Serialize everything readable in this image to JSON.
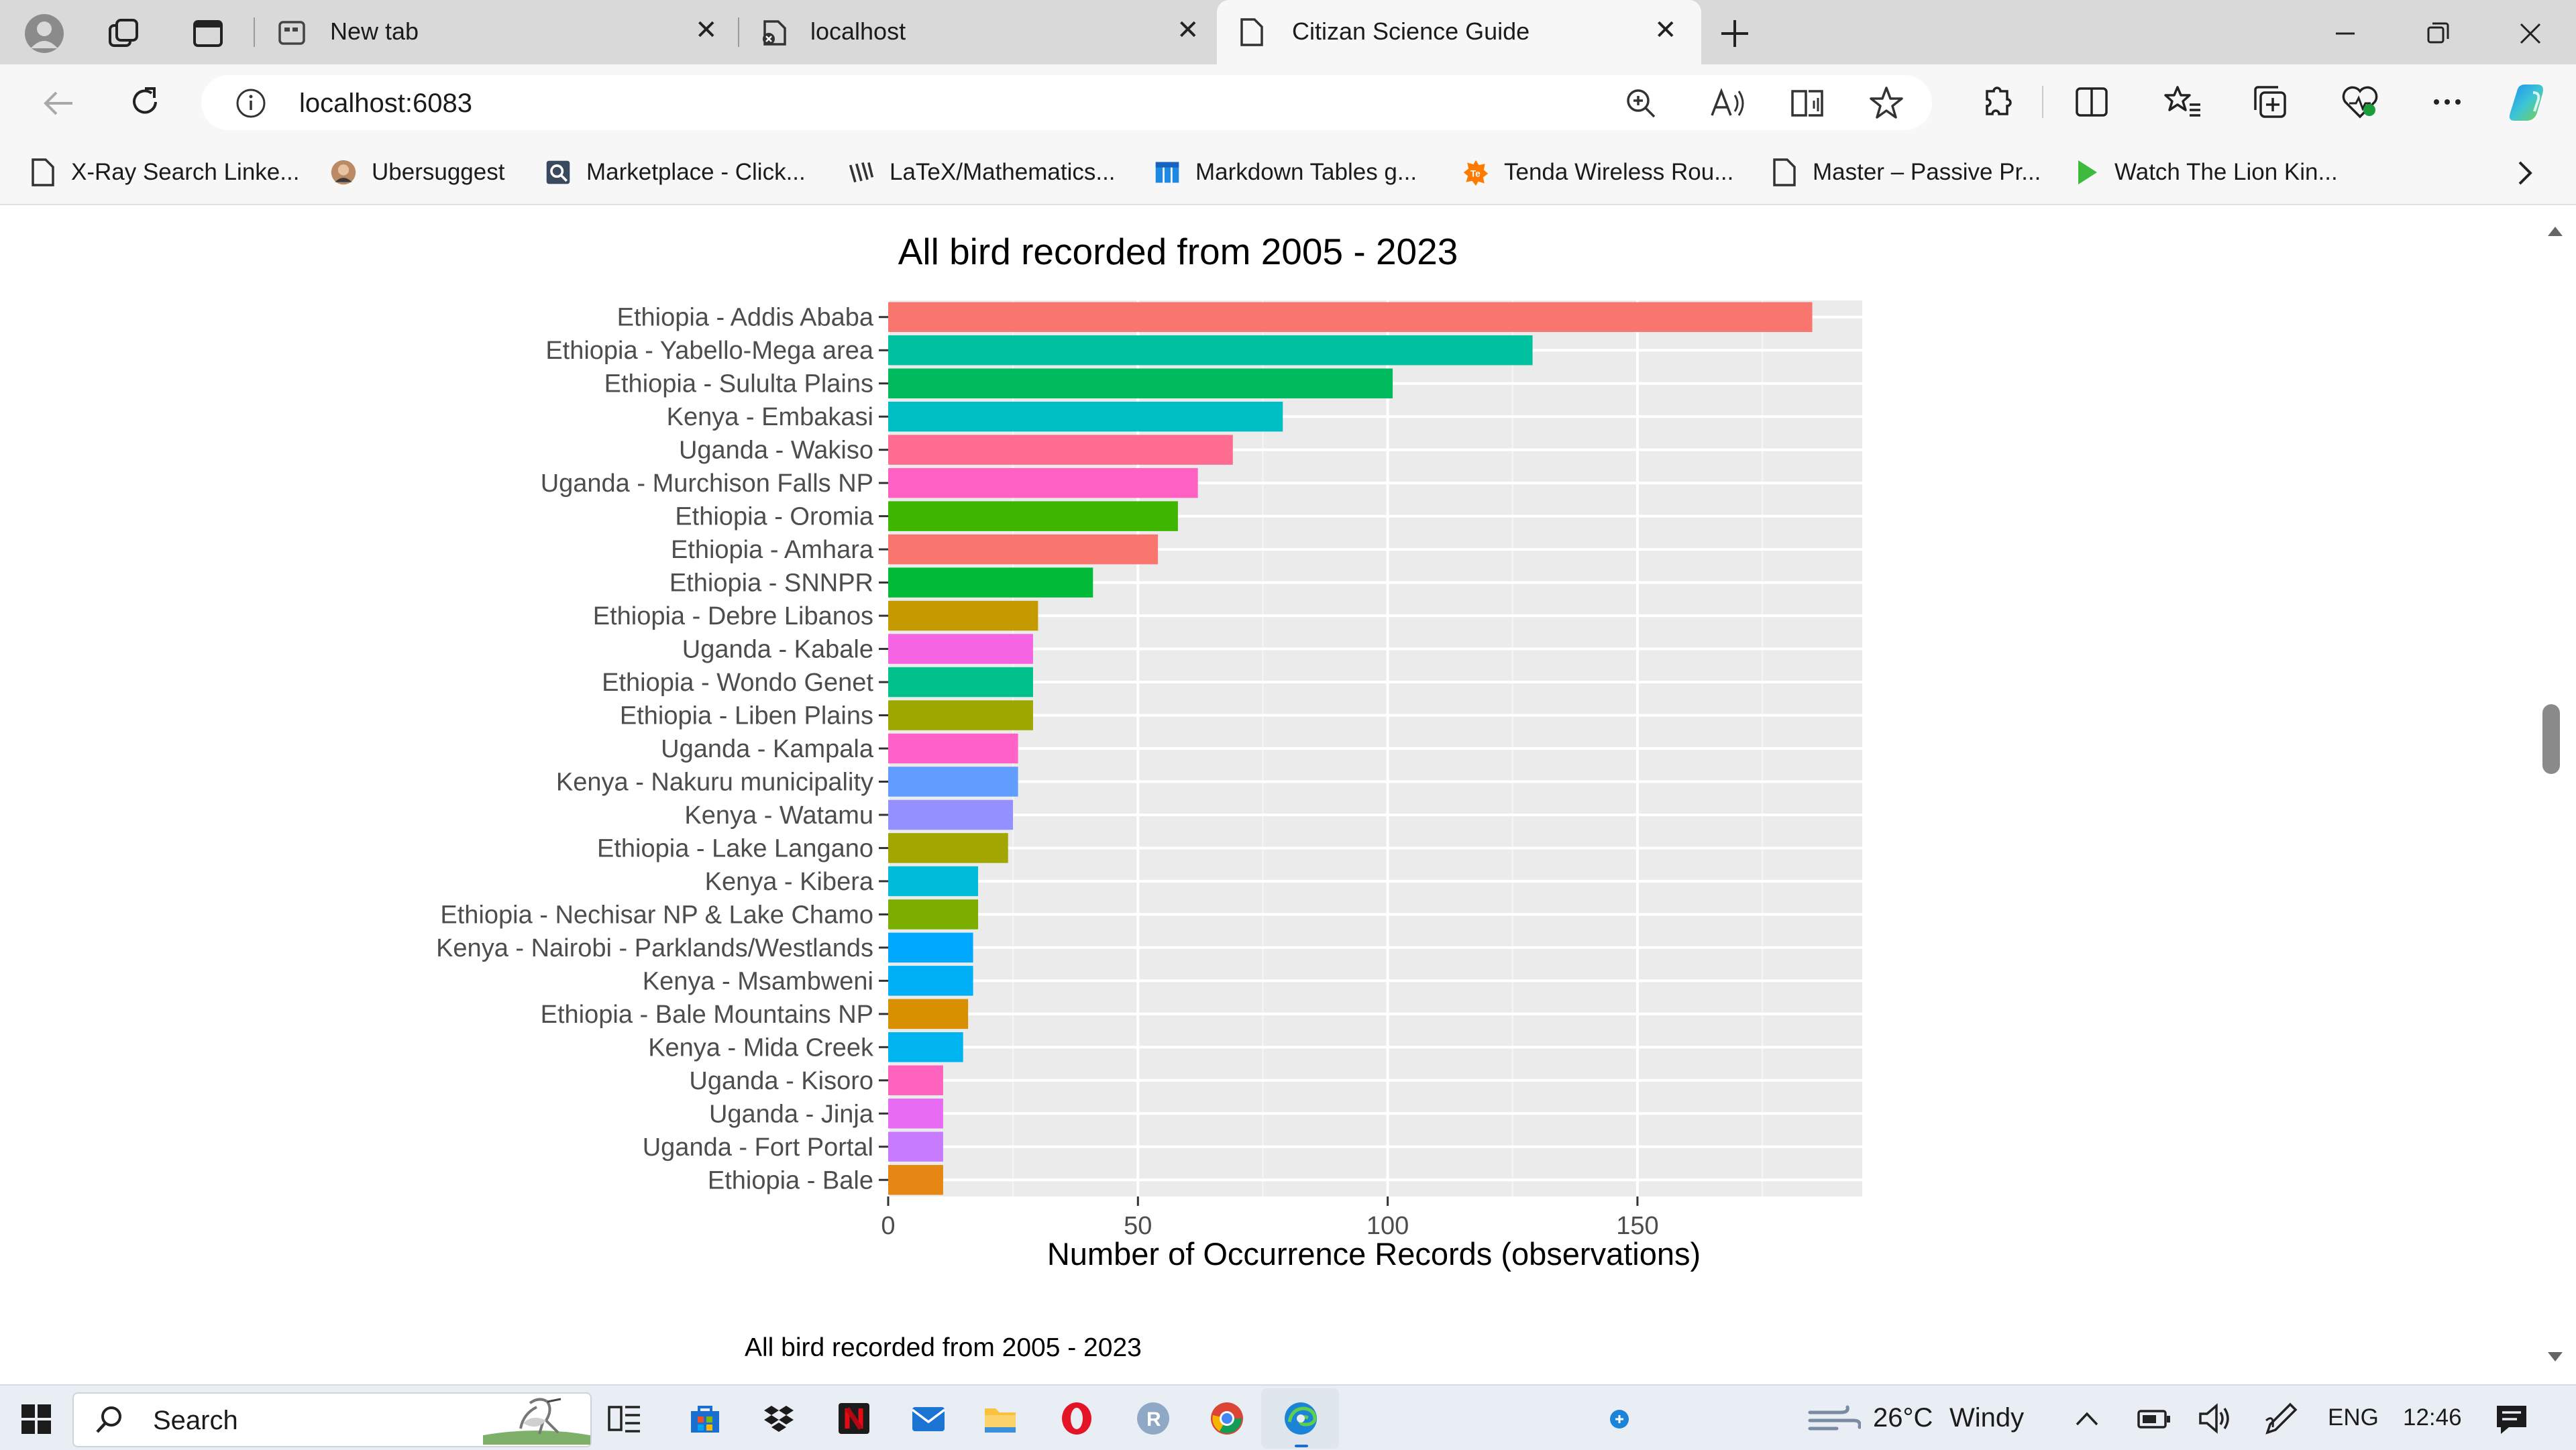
{
  "browser": {
    "tabs": [
      {
        "label": "New tab"
      },
      {
        "label": "localhost"
      },
      {
        "label": "Citizan Science Guide"
      }
    ],
    "url": "localhost:6083",
    "bookmarks": [
      {
        "label": "X-Ray Search Linke..."
      },
      {
        "label": "Ubersuggest"
      },
      {
        "label": "Marketplace - Click..."
      },
      {
        "label": "LaTeX/Mathematics..."
      },
      {
        "label": "Markdown Tables g..."
      },
      {
        "label": "Tenda Wireless Rou..."
      },
      {
        "label": "Master – Passive Pr..."
      },
      {
        "label": "Watch The Lion Kin..."
      }
    ]
  },
  "page": {
    "caption": "All bird recorded from 2005 - 2023"
  },
  "chart_data": {
    "type": "bar",
    "orientation": "horizontal",
    "title": "All bird recorded from 2005 - 2023",
    "xlabel": "Number of Occurrence Records (observations)",
    "ylabel": "",
    "xlim": [
      0,
      195
    ],
    "xticks": [
      0,
      50,
      100,
      150
    ],
    "grid": true,
    "categories": [
      "Ethiopia - Addis Ababa",
      "Ethiopia - Yabello-Mega area",
      "Ethiopia - Sululta Plains",
      "Kenya - Embakasi",
      "Uganda - Wakiso",
      "Uganda - Murchison Falls NP",
      "Ethiopia - Oromia",
      "Ethiopia - Amhara",
      "Ethiopia - SNNPR",
      "Ethiopia - Debre Libanos",
      "Uganda - Kabale",
      "Ethiopia - Wondo Genet",
      "Ethiopia - Liben Plains",
      "Uganda - Kampala",
      "Kenya - Nakuru municipality",
      "Kenya - Watamu",
      "Ethiopia - Lake Langano",
      "Kenya - Kibera",
      "Ethiopia - Nechisar NP & Lake Chamo",
      "Kenya - Nairobi - Parklands/Westlands",
      "Kenya - Msambweni",
      "Ethiopia - Bale Mountains NP",
      "Kenya - Mida Creek",
      "Uganda - Kisoro",
      "Uganda - Jinja",
      "Uganda - Fort Portal",
      "Ethiopia - Bale"
    ],
    "values": [
      185,
      129,
      101,
      79,
      69,
      62,
      58,
      54,
      41,
      30,
      29,
      29,
      29,
      26,
      26,
      25,
      24,
      18,
      18,
      17,
      17,
      16,
      15,
      11,
      11,
      11,
      11
    ],
    "colors": [
      "#F8766D",
      "#00C19F",
      "#00BA5E",
      "#00BFC4",
      "#FF6C91",
      "#FF61C3",
      "#3EB600",
      "#F8766D",
      "#00BA38",
      "#C49A00",
      "#F564E3",
      "#00C08B",
      "#9DA700",
      "#FF61C9",
      "#619CFF",
      "#9590FF",
      "#A3A500",
      "#00BCD8",
      "#7CAE00",
      "#00A9FF",
      "#00B0F6",
      "#D89000",
      "#00B4EF",
      "#FF62BC",
      "#E76BF3",
      "#C77CFF",
      "#E68613"
    ]
  },
  "taskbar": {
    "search_label": "Search",
    "weather_temp": "26°C",
    "weather_text": "Windy",
    "language": "ENG",
    "time": "12:46"
  }
}
